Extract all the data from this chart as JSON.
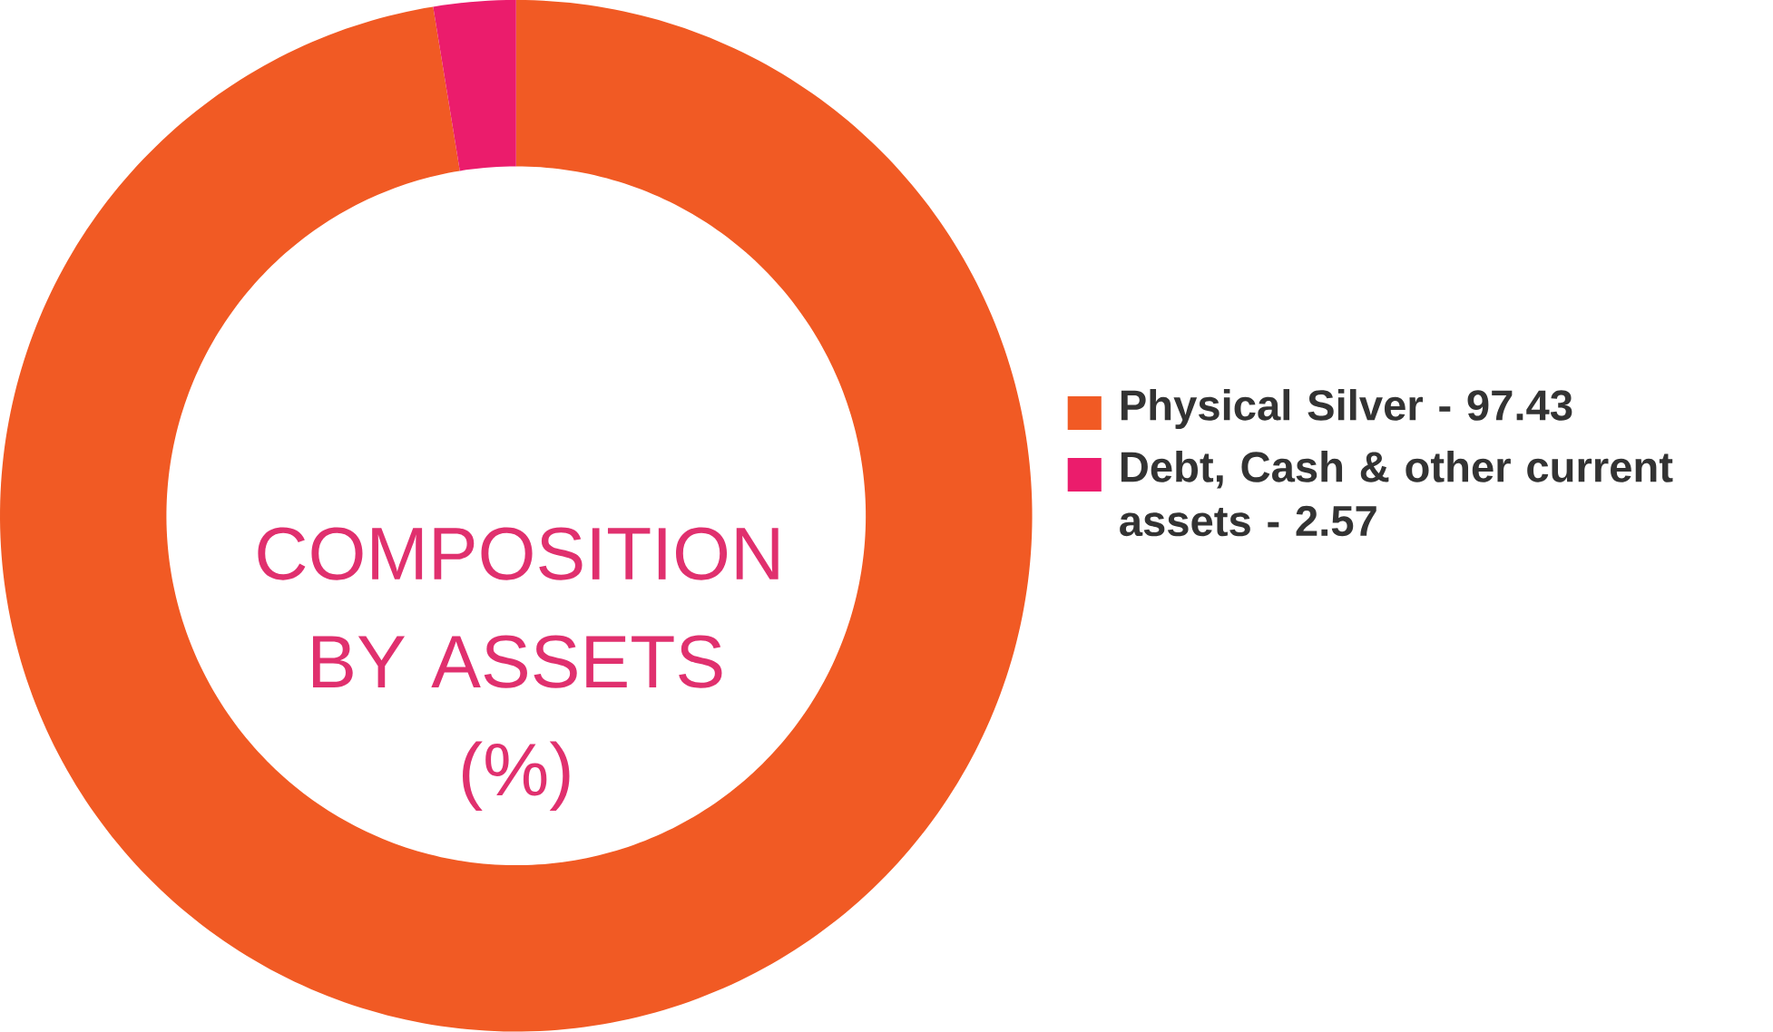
{
  "chart_data": {
    "type": "donut",
    "title": "COMPOSITION BY ASSETS (%)",
    "categories": [
      "Physical Silver - 97.43",
      "Debt, Cash & other current assets - 2.57"
    ],
    "values": [
      97.43,
      2.57
    ],
    "colors": [
      "#f15a24",
      "#eb1c6c"
    ],
    "legend": "right"
  }
}
